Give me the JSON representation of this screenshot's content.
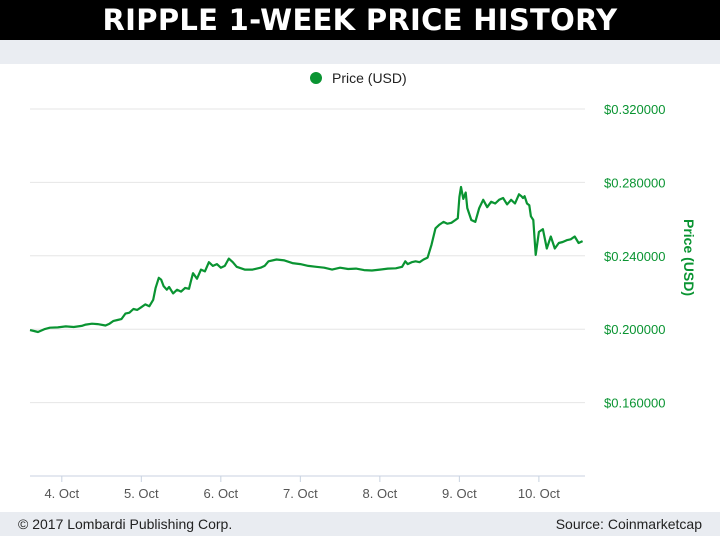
{
  "title": "RIPPLE 1-WEEK PRICE HISTORY",
  "footer": {
    "copyright": "© 2017 Lombardi Publishing Corp.",
    "source": "Source: Coinmarketcap"
  },
  "colors": {
    "series": "#0a9432",
    "axis_text": "#0a9432",
    "grid": "#e6e6e6",
    "title_bg": "#000000"
  },
  "chart_data": {
    "type": "line",
    "legend": {
      "label": "Price (USD)",
      "position": "top-center"
    },
    "ylabel": "Price (USD)",
    "ylim": [
      0.12,
      0.32
    ],
    "yticks": [
      0.16,
      0.2,
      0.24,
      0.28,
      0.32
    ],
    "ytick_labels": [
      "$0.160000",
      "$0.200000",
      "$0.240000",
      "$0.280000",
      "$0.320000"
    ],
    "ytick_labels_visible": [
      "$0.160000",
      "$0.200000",
      "$0.240000",
      "$0.280000",
      "$0.320000"
    ],
    "xlim": [
      3.6,
      10.58
    ],
    "xticks": [
      4,
      5,
      6,
      7,
      8,
      9,
      10
    ],
    "xtick_labels": [
      "4. Oct",
      "5. Oct",
      "6. Oct",
      "7. Oct",
      "8. Oct",
      "9. Oct",
      "10. Oct"
    ],
    "grid": true,
    "series": [
      {
        "name": "Price (USD)",
        "x": [
          3.6,
          3.65,
          3.7,
          3.78,
          3.85,
          3.95,
          4.05,
          4.15,
          4.25,
          4.3,
          4.38,
          4.45,
          4.55,
          4.6,
          4.65,
          4.7,
          4.75,
          4.8,
          4.85,
          4.9,
          4.95,
          5.0,
          5.05,
          5.1,
          5.15,
          5.18,
          5.22,
          5.25,
          5.28,
          5.32,
          5.35,
          5.4,
          5.45,
          5.5,
          5.55,
          5.6,
          5.62,
          5.65,
          5.7,
          5.75,
          5.8,
          5.85,
          5.9,
          5.95,
          6.0,
          6.05,
          6.1,
          6.15,
          6.2,
          6.3,
          6.4,
          6.5,
          6.55,
          6.6,
          6.7,
          6.8,
          6.9,
          7.0,
          7.1,
          7.2,
          7.3,
          7.4,
          7.5,
          7.6,
          7.7,
          7.8,
          7.9,
          8.0,
          8.1,
          8.2,
          8.28,
          8.32,
          8.35,
          8.4,
          8.45,
          8.5,
          8.55,
          8.6,
          8.65,
          8.7,
          8.75,
          8.8,
          8.85,
          8.9,
          8.95,
          8.98,
          9.0,
          9.02,
          9.05,
          9.08,
          9.1,
          9.15,
          9.2,
          9.25,
          9.3,
          9.35,
          9.4,
          9.45,
          9.5,
          9.55,
          9.6,
          9.63,
          9.65,
          9.7,
          9.72,
          9.75,
          9.78,
          9.8,
          9.82,
          9.85,
          9.88,
          9.9,
          9.93,
          9.96,
          10.0,
          10.05,
          10.1,
          10.15,
          10.2,
          10.25,
          10.3,
          10.35,
          10.4,
          10.45,
          10.5,
          10.55
        ],
        "values": [
          0.1995,
          0.199,
          0.1985,
          0.2,
          0.2008,
          0.201,
          0.2015,
          0.2012,
          0.2018,
          0.2025,
          0.203,
          0.2028,
          0.202,
          0.203,
          0.2045,
          0.205,
          0.2055,
          0.2085,
          0.209,
          0.211,
          0.2105,
          0.212,
          0.2135,
          0.2125,
          0.216,
          0.2225,
          0.228,
          0.227,
          0.2235,
          0.2215,
          0.223,
          0.2195,
          0.2215,
          0.2205,
          0.2225,
          0.222,
          0.2255,
          0.2305,
          0.2275,
          0.2325,
          0.2315,
          0.2365,
          0.2345,
          0.2355,
          0.2335,
          0.2345,
          0.2385,
          0.2365,
          0.234,
          0.2325,
          0.2325,
          0.2335,
          0.2345,
          0.237,
          0.238,
          0.2375,
          0.236,
          0.2355,
          0.2345,
          0.234,
          0.2335,
          0.2325,
          0.2335,
          0.2328,
          0.233,
          0.2322,
          0.232,
          0.2325,
          0.233,
          0.2332,
          0.234,
          0.237,
          0.2355,
          0.2365,
          0.237,
          0.2365,
          0.238,
          0.239,
          0.246,
          0.255,
          0.257,
          0.2585,
          0.2575,
          0.258,
          0.2595,
          0.2605,
          0.272,
          0.2775,
          0.271,
          0.2745,
          0.266,
          0.2595,
          0.2585,
          0.266,
          0.2705,
          0.2665,
          0.2695,
          0.2685,
          0.2705,
          0.2715,
          0.268,
          0.2695,
          0.2705,
          0.2685,
          0.2705,
          0.2735,
          0.2725,
          0.2715,
          0.2725,
          0.2685,
          0.2675,
          0.2615,
          0.2595,
          0.2405,
          0.253,
          0.2545,
          0.244,
          0.2505,
          0.244,
          0.247,
          0.2475,
          0.2485,
          0.249,
          0.2505,
          0.247,
          0.248
        ]
      }
    ]
  }
}
